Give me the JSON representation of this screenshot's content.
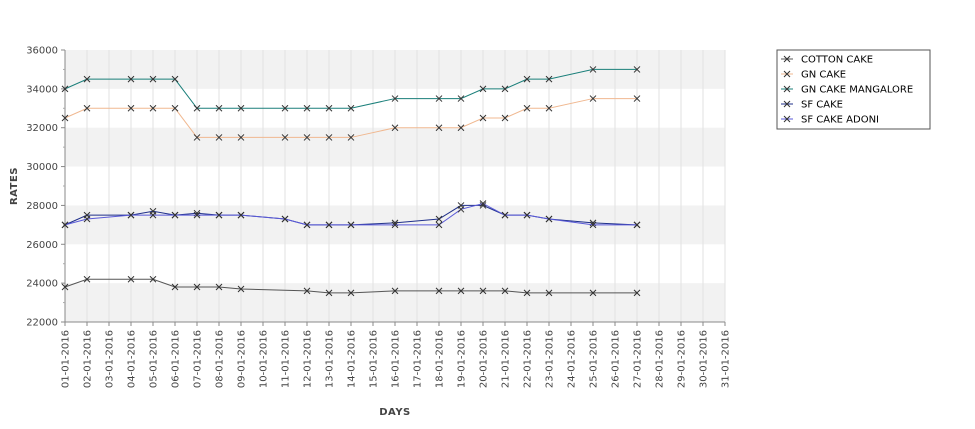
{
  "chart_data": {
    "type": "line",
    "title": "",
    "xlabel": "DAYS",
    "ylabel": "RATES",
    "ylim": [
      22000,
      36000
    ],
    "yticks": [
      22000,
      24000,
      26000,
      28000,
      30000,
      32000,
      34000,
      36000
    ],
    "grid": true,
    "legend_position": "top-right",
    "categories": [
      "01-01-2016",
      "02-01-2016",
      "03-01-2016",
      "04-01-2016",
      "05-01-2016",
      "06-01-2016",
      "07-01-2016",
      "08-01-2016",
      "09-01-2016",
      "10-01-2016",
      "11-01-2016",
      "12-01-2016",
      "13-01-2016",
      "14-01-2016",
      "15-01-2016",
      "16-01-2016",
      "17-01-2016",
      "18-01-2016",
      "19-01-2016",
      "20-01-2016",
      "21-01-2016",
      "22-01-2016",
      "23-01-2016",
      "24-01-2016",
      "25-01-2016",
      "26-01-2016",
      "27-01-2016",
      "28-01-2016",
      "29-01-2016",
      "30-01-2016",
      "31-01-2016"
    ],
    "series": [
      {
        "name": "COTTON CAKE",
        "color": "#555555",
        "points": [
          [
            "01-01-2016",
            23800
          ],
          [
            "02-01-2016",
            24200
          ],
          [
            "04-01-2016",
            24200
          ],
          [
            "05-01-2016",
            24200
          ],
          [
            "06-01-2016",
            23800
          ],
          [
            "07-01-2016",
            23800
          ],
          [
            "08-01-2016",
            23800
          ],
          [
            "09-01-2016",
            23700
          ],
          [
            "12-01-2016",
            23600
          ],
          [
            "13-01-2016",
            23500
          ],
          [
            "14-01-2016",
            23500
          ],
          [
            "16-01-2016",
            23600
          ],
          [
            "18-01-2016",
            23600
          ],
          [
            "19-01-2016",
            23600
          ],
          [
            "20-01-2016",
            23600
          ],
          [
            "21-01-2016",
            23600
          ],
          [
            "22-01-2016",
            23500
          ],
          [
            "23-01-2016",
            23500
          ],
          [
            "25-01-2016",
            23500
          ],
          [
            "27-01-2016",
            23500
          ]
        ]
      },
      {
        "name": "GN CAKE",
        "color": "#f0b890",
        "points": [
          [
            "01-01-2016",
            32500
          ],
          [
            "02-01-2016",
            33000
          ],
          [
            "04-01-2016",
            33000
          ],
          [
            "05-01-2016",
            33000
          ],
          [
            "06-01-2016",
            33000
          ],
          [
            "07-01-2016",
            31500
          ],
          [
            "08-01-2016",
            31500
          ],
          [
            "09-01-2016",
            31500
          ],
          [
            "11-01-2016",
            31500
          ],
          [
            "12-01-2016",
            31500
          ],
          [
            "13-01-2016",
            31500
          ],
          [
            "14-01-2016",
            31500
          ],
          [
            "16-01-2016",
            32000
          ],
          [
            "18-01-2016",
            32000
          ],
          [
            "19-01-2016",
            32000
          ],
          [
            "20-01-2016",
            32500
          ],
          [
            "21-01-2016",
            32500
          ],
          [
            "22-01-2016",
            33000
          ],
          [
            "23-01-2016",
            33000
          ],
          [
            "25-01-2016",
            33500
          ],
          [
            "27-01-2016",
            33500
          ]
        ]
      },
      {
        "name": "GN CAKE MANGALORE",
        "color": "#1a7f7a",
        "points": [
          [
            "01-01-2016",
            34000
          ],
          [
            "02-01-2016",
            34500
          ],
          [
            "04-01-2016",
            34500
          ],
          [
            "05-01-2016",
            34500
          ],
          [
            "06-01-2016",
            34500
          ],
          [
            "07-01-2016",
            33000
          ],
          [
            "08-01-2016",
            33000
          ],
          [
            "09-01-2016",
            33000
          ],
          [
            "11-01-2016",
            33000
          ],
          [
            "12-01-2016",
            33000
          ],
          [
            "13-01-2016",
            33000
          ],
          [
            "14-01-2016",
            33000
          ],
          [
            "16-01-2016",
            33500
          ],
          [
            "18-01-2016",
            33500
          ],
          [
            "19-01-2016",
            33500
          ],
          [
            "20-01-2016",
            34000
          ],
          [
            "21-01-2016",
            34000
          ],
          [
            "22-01-2016",
            34500
          ],
          [
            "23-01-2016",
            34500
          ],
          [
            "25-01-2016",
            35000
          ],
          [
            "27-01-2016",
            35000
          ]
        ]
      },
      {
        "name": "SF CAKE",
        "color": "#1f2f8a",
        "points": [
          [
            "01-01-2016",
            27000
          ],
          [
            "02-01-2016",
            27500
          ],
          [
            "04-01-2016",
            27500
          ],
          [
            "05-01-2016",
            27700
          ],
          [
            "06-01-2016",
            27500
          ],
          [
            "07-01-2016",
            27600
          ],
          [
            "08-01-2016",
            27500
          ],
          [
            "09-01-2016",
            27500
          ],
          [
            "11-01-2016",
            27300
          ],
          [
            "12-01-2016",
            27000
          ],
          [
            "13-01-2016",
            27000
          ],
          [
            "14-01-2016",
            27000
          ],
          [
            "16-01-2016",
            27100
          ],
          [
            "18-01-2016",
            27300
          ],
          [
            "19-01-2016",
            28000
          ],
          [
            "20-01-2016",
            28000
          ],
          [
            "21-01-2016",
            27500
          ],
          [
            "22-01-2016",
            27500
          ],
          [
            "23-01-2016",
            27300
          ],
          [
            "25-01-2016",
            27100
          ],
          [
            "27-01-2016",
            27000
          ]
        ]
      },
      {
        "name": "SF CAKE ADONI",
        "color": "#5a5ad8",
        "points": [
          [
            "01-01-2016",
            27000
          ],
          [
            "02-01-2016",
            27300
          ],
          [
            "04-01-2016",
            27500
          ],
          [
            "05-01-2016",
            27500
          ],
          [
            "06-01-2016",
            27500
          ],
          [
            "07-01-2016",
            27500
          ],
          [
            "08-01-2016",
            27500
          ],
          [
            "09-01-2016",
            27500
          ],
          [
            "11-01-2016",
            27300
          ],
          [
            "12-01-2016",
            27000
          ],
          [
            "13-01-2016",
            27000
          ],
          [
            "14-01-2016",
            27000
          ],
          [
            "16-01-2016",
            27000
          ],
          [
            "18-01-2016",
            27000
          ],
          [
            "19-01-2016",
            27800
          ],
          [
            "20-01-2016",
            28100
          ],
          [
            "21-01-2016",
            27500
          ],
          [
            "22-01-2016",
            27500
          ],
          [
            "23-01-2016",
            27300
          ],
          [
            "25-01-2016",
            27000
          ],
          [
            "27-01-2016",
            27000
          ]
        ]
      }
    ]
  }
}
